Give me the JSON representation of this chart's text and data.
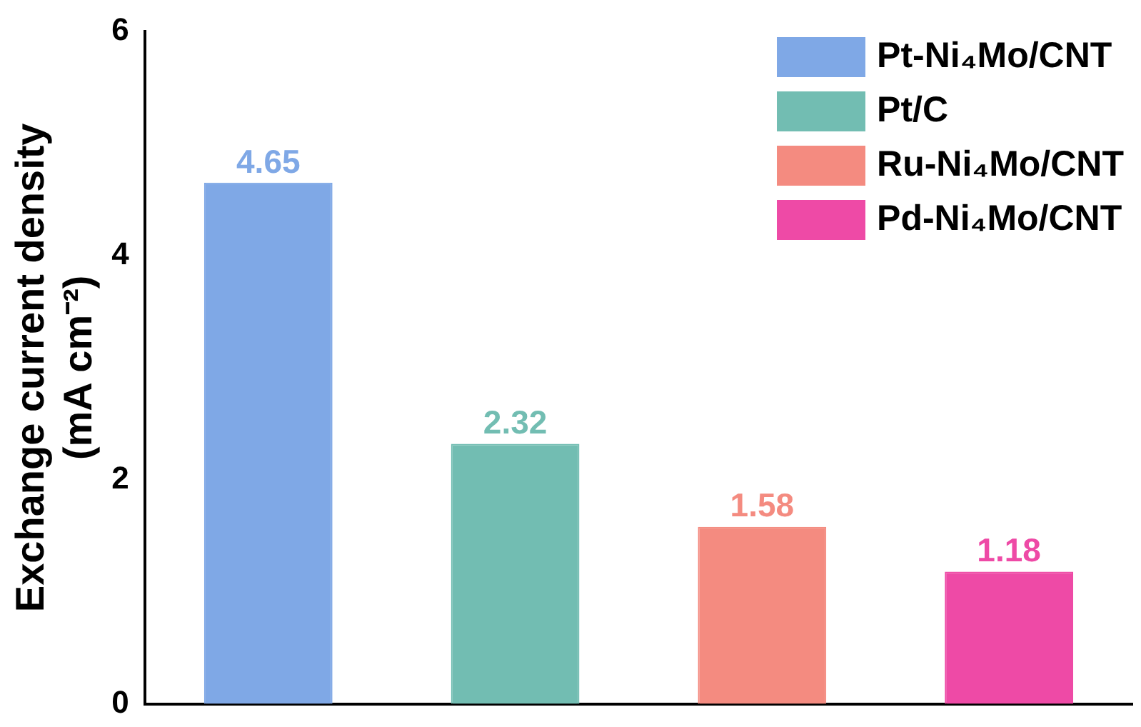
{
  "chart_data": {
    "type": "bar",
    "ylabel": "Exchange current density (mA cm⁻²)",
    "categories": [
      null,
      null,
      null,
      null
    ],
    "series": [
      {
        "name": "Pt-Ni₄Mo/CNT",
        "color": "#7fa8e6",
        "values": [
          4.65,
          null,
          null,
          null
        ]
      },
      {
        "name": "Pt/C",
        "color": "#72bdb2",
        "values": [
          null,
          2.32,
          null,
          null
        ]
      },
      {
        "name": "Ru-Ni₄Mo/CNT",
        "color": "#f48b80",
        "values": [
          null,
          null,
          1.58,
          null
        ]
      },
      {
        "name": "Pd-Ni₄Mo/CNT",
        "color": "#ee4aa6",
        "values": [
          null,
          null,
          null,
          1.18
        ]
      }
    ],
    "ylim": [
      0,
      6
    ],
    "yticks": [
      0,
      2,
      4,
      6
    ],
    "grid": false,
    "legend": "top right",
    "data_labels": true,
    "tick_labels": "y"
  }
}
